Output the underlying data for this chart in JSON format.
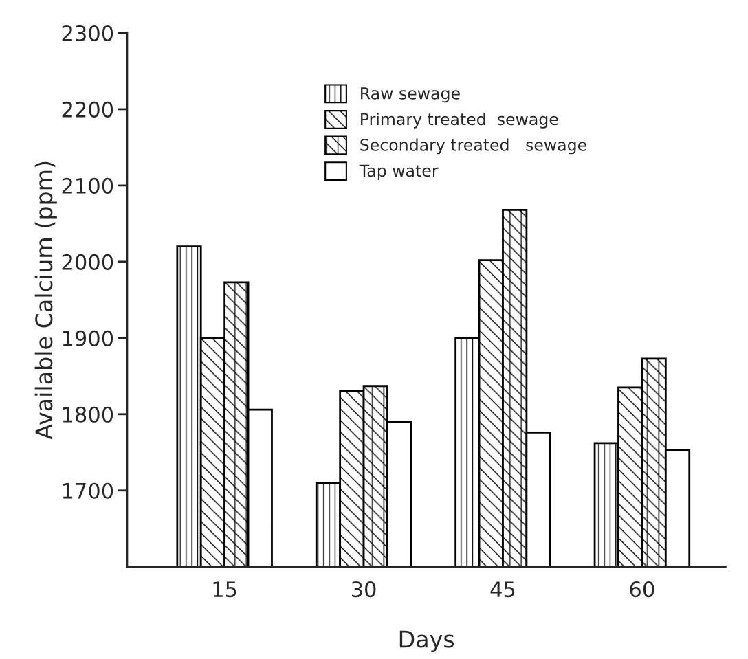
{
  "chart_data": {
    "type": "bar",
    "xlabel": "Days",
    "ylabel": "Available Calcium (ppm)",
    "categories": [
      "15",
      "30",
      "45",
      "60"
    ],
    "series": [
      {
        "name": "Raw sewage",
        "color": "#000000",
        "values": [
          2020,
          1710,
          1900,
          1762
        ]
      },
      {
        "name": "Primary treated  sewage",
        "color": "#000000",
        "values": [
          1900,
          1830,
          2002,
          1835
        ]
      },
      {
        "name": "Secondary treated   sewage",
        "color": "#000000",
        "values": [
          1973,
          1837,
          2068,
          1873
        ]
      },
      {
        "name": "Tap water",
        "color": "#ffffff",
        "values": [
          1806,
          1790,
          1776,
          1753
        ]
      }
    ],
    "ylim": [
      1600,
      2300
    ],
    "yticks": [
      1700,
      1800,
      1900,
      2000,
      2100,
      2200,
      2300
    ],
    "grid": false,
    "legend": "top"
  }
}
